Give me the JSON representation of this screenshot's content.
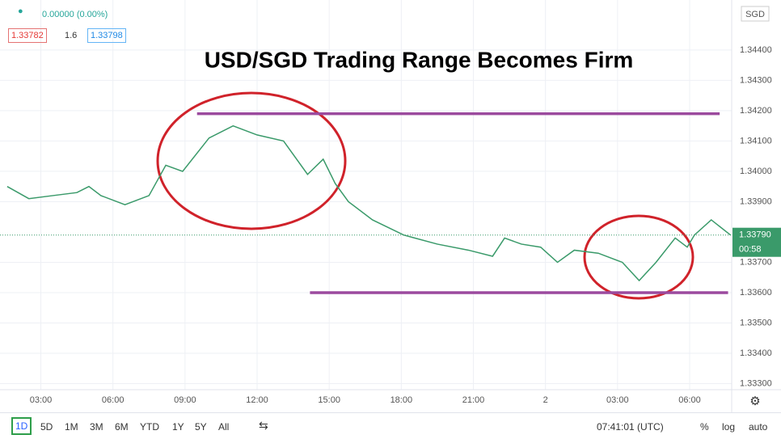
{
  "chart_data": {
    "type": "line",
    "title": "USD/SGD Trading Range Becomes Firm",
    "currency": "SGD",
    "x": [
      1.6,
      2.5,
      3.5,
      4.5,
      5.0,
      5.5,
      6.5,
      7.5,
      8.2,
      8.9,
      10.0,
      11.0,
      12.0,
      13.1,
      14.1,
      14.75,
      15.25,
      15.8,
      16.8,
      18.1,
      19.5,
      20.8,
      21.8,
      22.3,
      23.0,
      23.8,
      24.5,
      25.2,
      26.2,
      27.2,
      27.9,
      28.6,
      29.4,
      29.9,
      30.2,
      30.9,
      31.7
    ],
    "series": [
      {
        "name": "USD/SGD",
        "color": "#3a9a6a",
        "values": [
          1.3395,
          1.3391,
          1.3392,
          1.3393,
          1.3395,
          1.3392,
          1.3389,
          1.3392,
          1.3402,
          1.34,
          1.3411,
          1.3415,
          1.3412,
          1.341,
          1.3399,
          1.3404,
          1.3396,
          1.339,
          1.3384,
          1.3379,
          1.3376,
          1.3374,
          1.3372,
          1.3378,
          1.3376,
          1.3375,
          1.337,
          1.3374,
          1.3373,
          1.337,
          1.3364,
          1.337,
          1.3378,
          1.3375,
          1.3379,
          1.3384,
          1.3379
        ]
      }
    ],
    "xlim": [
      1.3,
      31.75
    ],
    "xticks": [
      {
        "value": 3,
        "label": "03:00"
      },
      {
        "value": 6,
        "label": "06:00"
      },
      {
        "value": 9,
        "label": "09:00"
      },
      {
        "value": 12,
        "label": "12:00"
      },
      {
        "value": 15,
        "label": "15:00"
      },
      {
        "value": 18,
        "label": "18:00"
      },
      {
        "value": 21,
        "label": "21:00"
      },
      {
        "value": 24,
        "label": "2"
      },
      {
        "value": 27,
        "label": "03:00"
      },
      {
        "value": 30,
        "label": "06:00"
      }
    ],
    "ylim": [
      1.3328,
      1.34565
    ],
    "yticks": [
      {
        "value": 1.333,
        "label": "1.33300"
      },
      {
        "value": 1.334,
        "label": "1.33400"
      },
      {
        "value": 1.335,
        "label": "1.33500"
      },
      {
        "value": 1.336,
        "label": "1.33600"
      },
      {
        "value": 1.337,
        "label": "1.33700"
      },
      {
        "value": 1.339,
        "label": "1.33900"
      },
      {
        "value": 1.34,
        "label": "1.34000"
      },
      {
        "value": 1.341,
        "label": "1.34100"
      },
      {
        "value": 1.342,
        "label": "1.34200"
      },
      {
        "value": 1.343,
        "label": "1.34300"
      },
      {
        "value": 1.344,
        "label": "1.34400"
      }
    ],
    "grid": true,
    "last_price": {
      "value": 1.3379,
      "label": "1.33790"
    },
    "countdown": "00:58",
    "range_lines": [
      {
        "y": 1.3419,
        "x": [
          9.5,
          31.25
        ],
        "color": "#9b4a9e"
      },
      {
        "y": 1.336,
        "x": [
          14.2,
          31.6
        ],
        "color": "#9b4a9e"
      }
    ]
  },
  "ui": {
    "change": "0.00000 (0.00%)",
    "bid": "1.33782",
    "spread": "1.6",
    "ask": "1.33798",
    "ranges": [
      "1D",
      "5D",
      "1M",
      "3M",
      "6M",
      "YTD",
      "1Y",
      "5Y",
      "All"
    ],
    "clock": "07:41:01 (UTC)",
    "percent": "%",
    "log": "log",
    "auto": "auto"
  }
}
